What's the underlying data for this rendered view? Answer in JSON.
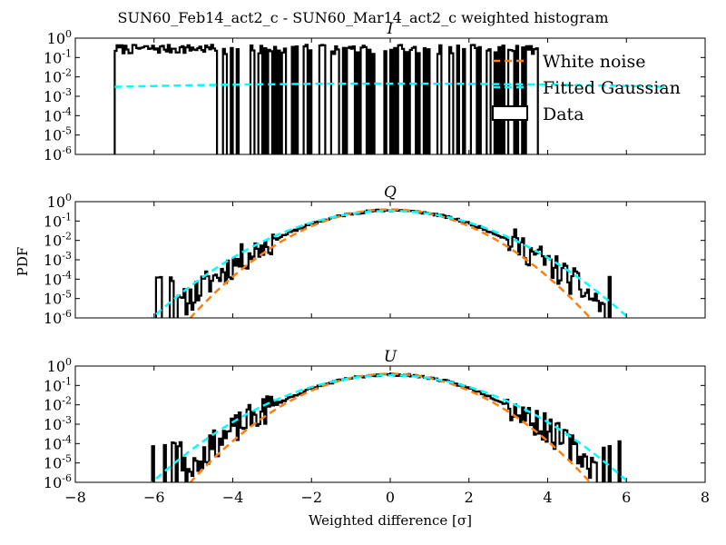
{
  "figure": {
    "title": "SUN60_Feb14_act2_c - SUN60_Mar14_act2_c weighted histogram",
    "ylabel": "PDF",
    "xlabel": "Weighted difference [σ]"
  },
  "chart_data": [
    {
      "type": "line",
      "panel_title": "I",
      "xlim": [
        -8,
        8
      ],
      "ylim": [
        1e-06,
        1
      ],
      "yscale": "log",
      "x_ticks": [
        "−8",
        "−6",
        "−4",
        "−2",
        "0",
        "2",
        "4",
        "6",
        "8"
      ],
      "y_ticks": [
        "10^0",
        "10^-1",
        "10^-2",
        "10^-3",
        "10^-4",
        "10^-5",
        "10^-6"
      ],
      "show_x_tick_labels": false,
      "legend": {
        "placement": "upper-right",
        "entries": [
          {
            "label": "White noise",
            "style": "dashed",
            "color": "#ff7f0e"
          },
          {
            "label": "Fitted Gaussian",
            "style": "dashed",
            "color": "#00ffff"
          },
          {
            "label": "Data",
            "style": "box",
            "color": "#000000"
          }
        ]
      },
      "series": [
        {
          "name": "Fitted Gaussian",
          "color": "#00ffff",
          "style": "dashed",
          "mu": 0,
          "sigma": 80,
          "range": [
            -7,
            7
          ]
        },
        {
          "name": "Data",
          "color": "#000000",
          "style": "histogram",
          "range": [
            -7,
            3.7
          ],
          "band_level": 0.3,
          "dense_until": -4.5,
          "tail_fill": 0.45,
          "seed": 7
        }
      ]
    },
    {
      "type": "line",
      "panel_title": "Q",
      "xlim": [
        -8,
        8
      ],
      "ylim": [
        1e-06,
        1
      ],
      "yscale": "log",
      "x_ticks": [
        "−8",
        "−6",
        "−4",
        "−2",
        "0",
        "2",
        "4",
        "6",
        "8"
      ],
      "y_ticks": [
        "10^0",
        "10^-1",
        "10^-2",
        "10^-3",
        "10^-4",
        "10^-5",
        "10^-6"
      ],
      "show_x_tick_labels": false,
      "series": [
        {
          "name": "White noise",
          "color": "#ff7f0e",
          "style": "dashed",
          "mu": 0,
          "sigma": 1.0,
          "range": [
            -8,
            8
          ]
        },
        {
          "name": "Fitted Gaussian",
          "color": "#00ffff",
          "style": "dashed",
          "mu": 0,
          "sigma": 1.2,
          "range": [
            -8,
            8
          ]
        },
        {
          "name": "Data",
          "color": "#000000",
          "style": "histogram",
          "range": [
            -6.0,
            6.2
          ],
          "mu": 0,
          "sigma": 1.12,
          "seed": 11
        }
      ]
    },
    {
      "type": "line",
      "panel_title": "U",
      "xlim": [
        -8,
        8
      ],
      "ylim": [
        1e-06,
        1
      ],
      "yscale": "log",
      "x_ticks": [
        "−8",
        "−6",
        "−4",
        "−2",
        "0",
        "2",
        "4",
        "6",
        "8"
      ],
      "y_ticks": [
        "10^0",
        "10^-1",
        "10^-2",
        "10^-3",
        "10^-4",
        "10^-5",
        "10^-6"
      ],
      "show_x_tick_labels": true,
      "series": [
        {
          "name": "White noise",
          "color": "#ff7f0e",
          "style": "dashed",
          "mu": 0,
          "sigma": 1.0,
          "range": [
            -8,
            8
          ]
        },
        {
          "name": "Fitted Gaussian",
          "color": "#00ffff",
          "style": "dashed",
          "mu": 0,
          "sigma": 1.2,
          "range": [
            -8,
            8
          ]
        },
        {
          "name": "Data",
          "color": "#000000",
          "style": "histogram",
          "range": [
            -6.4,
            6.0
          ],
          "mu": 0,
          "sigma": 1.1,
          "seed": 23
        }
      ]
    }
  ]
}
